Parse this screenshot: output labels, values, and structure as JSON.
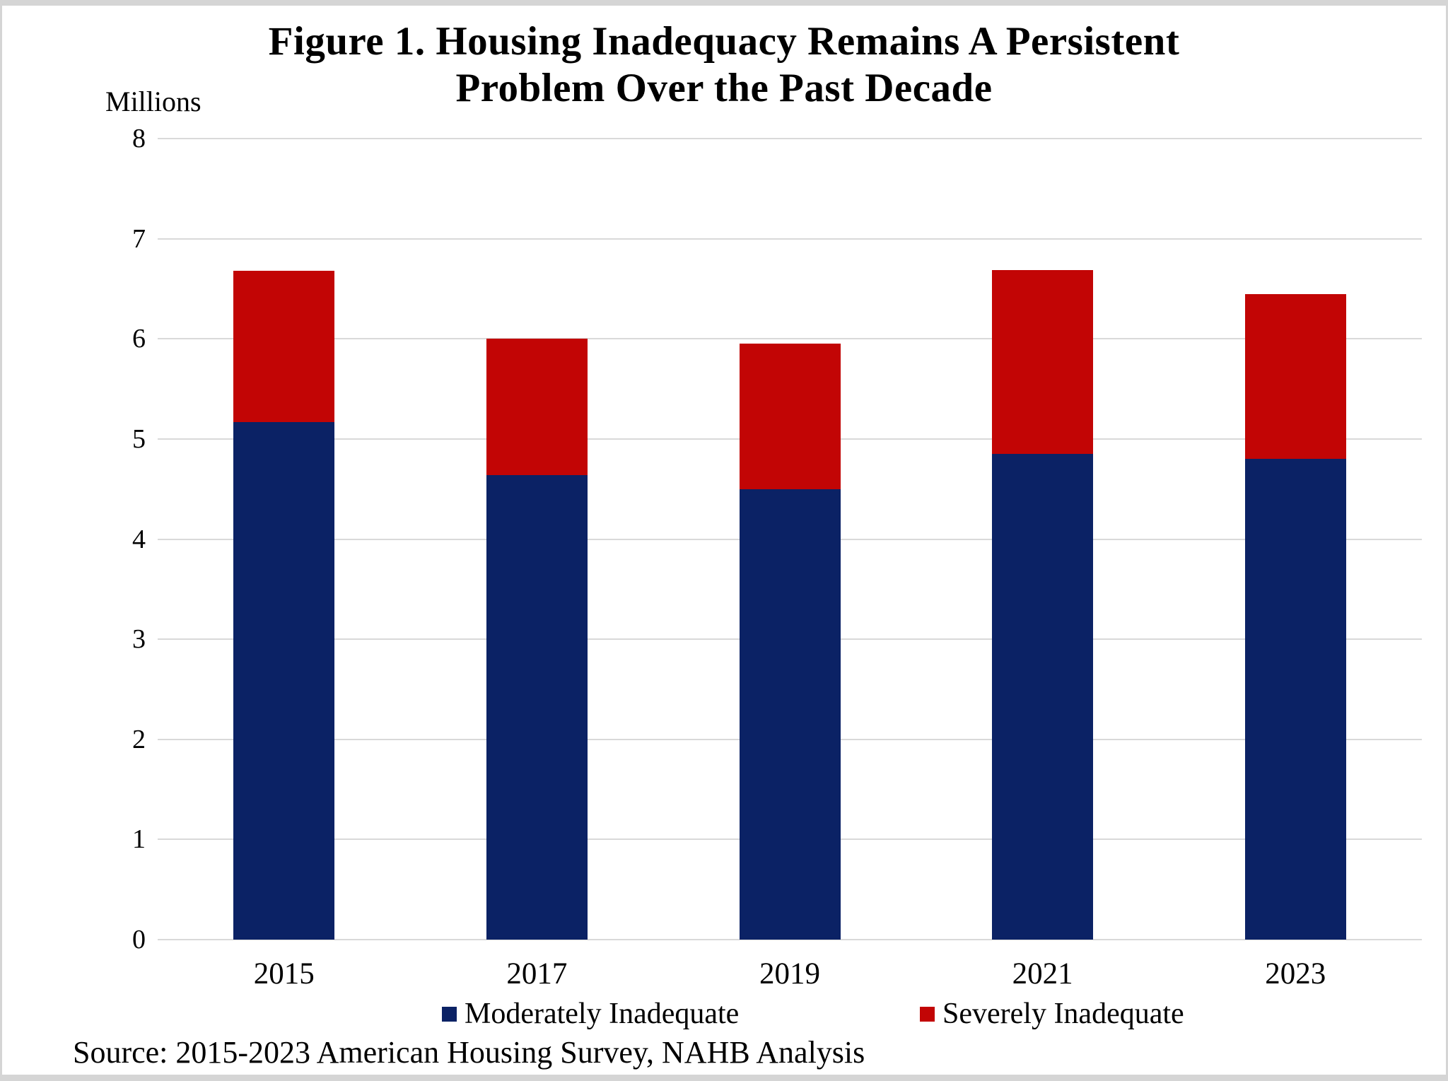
{
  "title": {
    "line1": "Figure 1. Housing Inadequacy Remains A Persistent",
    "line2": "Problem Over the Past Decade"
  },
  "source_note": "Source: 2015-2023 American Housing Survey, NAHB Analysis",
  "colors": {
    "moderately_inadequate": "#0b2265",
    "severely_inadequate": "#c20505",
    "gridline": "#d9d9d9",
    "text": "#000000",
    "frame_border": "#d5d5d5"
  },
  "chart_data": {
    "type": "bar",
    "stacked": true,
    "title": "Figure 1. Housing Inadequacy Remains A Persistent Problem Over the Past Decade",
    "xlabel": "",
    "ylabel": "Millions",
    "ylim": [
      0,
      8
    ],
    "yticks": [
      0,
      1,
      2,
      3,
      4,
      5,
      6,
      7,
      8
    ],
    "grid": true,
    "legend_position": "bottom",
    "categories": [
      "2015",
      "2017",
      "2019",
      "2021",
      "2023"
    ],
    "series": [
      {
        "name": "Moderately Inadequate",
        "color": "#0b2265",
        "values": [
          5.17,
          4.64,
          4.5,
          4.85,
          4.8
        ]
      },
      {
        "name": "Severely Inadequate",
        "color": "#c20505",
        "values": [
          1.51,
          1.36,
          1.45,
          1.84,
          1.65
        ]
      }
    ],
    "totals": [
      6.68,
      6.0,
      5.95,
      6.69,
      6.45
    ]
  }
}
